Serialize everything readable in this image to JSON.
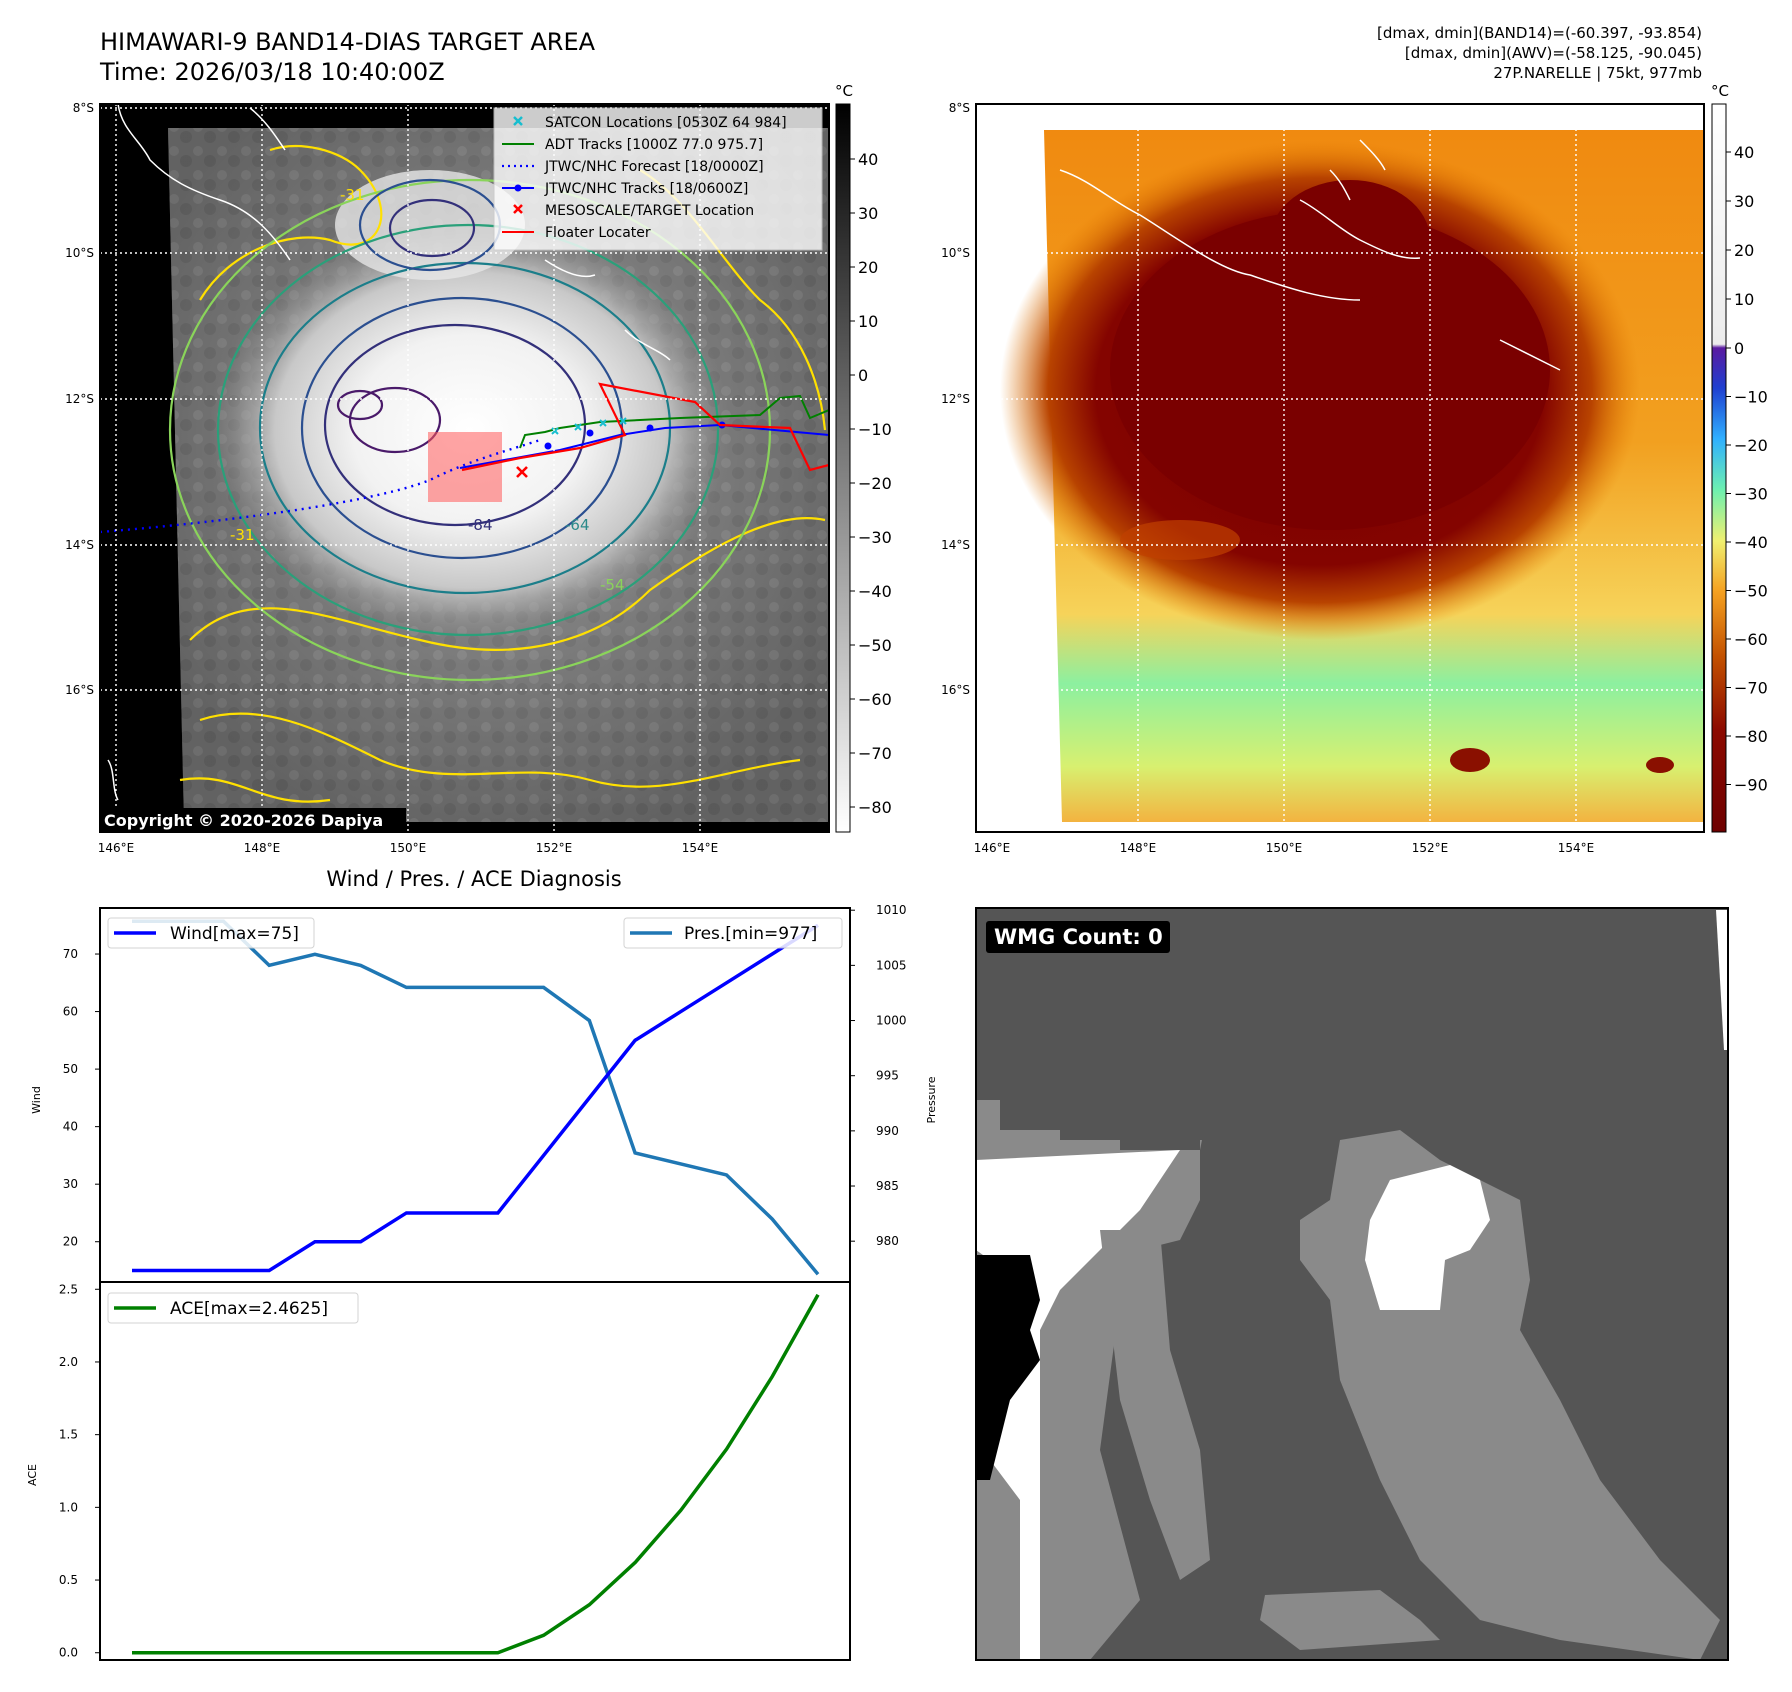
{
  "header": {
    "title_line1": "HIMAWARI-9 BAND14-DIAS TARGET AREA",
    "title_line2": "Time: 2026/03/18 10:40:00Z",
    "info_line1": "[dmax, dmin](BAND14)=(-60.397, -93.854)",
    "info_line2": "[dmax, dmin](AWV)=(-58.125, -90.045)",
    "info_line3": "27P.NARELLE | 75kt, 977mb"
  },
  "maps": {
    "lat_labels": [
      "8°S",
      "10°S",
      "12°S",
      "14°S",
      "16°S"
    ],
    "lon_labels": [
      "146°E",
      "148°E",
      "150°E",
      "152°E",
      "154°E"
    ],
    "copyright": "Copyright © 2020-2026 Dapiya",
    "legend": [
      {
        "label": "SATCON Locations [0530Z 64 984]",
        "color": "#17becf",
        "marker": "x"
      },
      {
        "label": "ADT Tracks [1000Z 77.0 975.7]",
        "color": "#008000",
        "marker": "line"
      },
      {
        "label": "JTWC/NHC Forecast [18/0000Z]",
        "color": "#0000ff",
        "marker": "dotted"
      },
      {
        "label": "JTWC/NHC Tracks [18/0600Z]",
        "color": "#0000ff",
        "marker": "line-dot"
      },
      {
        "label": "MESOSCALE/TARGET Location",
        "color": "#ff0000",
        "marker": "x"
      },
      {
        "label": "Floater Locater",
        "color": "#ff0000",
        "marker": "line"
      }
    ],
    "contour_labels": [
      "-31",
      "-54",
      "-64",
      "-84"
    ],
    "colorbar1": {
      "unit": "°C",
      "ticks": [
        "40",
        "30",
        "20",
        "10",
        "0",
        "−10",
        "−20",
        "−30",
        "−40",
        "−50",
        "−60",
        "−70",
        "−80"
      ]
    },
    "colorbar2": {
      "unit": "°C",
      "ticks": [
        "40",
        "30",
        "20",
        "10",
        "0",
        "−10",
        "−20",
        "−30",
        "−40",
        "−50",
        "−60",
        "−70",
        "−80",
        "−90"
      ]
    }
  },
  "diagnosis": {
    "title": "Wind / Pres. / ACE Diagnosis",
    "wind_ylabel": "Wind",
    "pressure_ylabel": "Pressure",
    "ace_ylabel": "ACE",
    "legend_wind": "Wind[max=75]",
    "legend_pres": "Pres.[min=977]",
    "legend_ace": "ACE[max=2.4625]"
  },
  "wmg": {
    "label": "WMG Count: 0"
  },
  "colors": {
    "wind": "#0000ff",
    "pressure": "#1f77b4",
    "ace": "#008000",
    "tracks_red": "#ff0000",
    "contour_yellow": "#ffe000"
  },
  "chart_data": [
    {
      "type": "line",
      "title": "Wind / Pres. / ACE Diagnosis",
      "x": [
        0,
        1,
        2,
        3,
        4,
        5,
        6,
        7,
        8,
        9,
        10,
        11,
        12,
        13,
        14,
        15
      ],
      "series": [
        {
          "name": "Wind[max=75]",
          "axis": "left",
          "values": [
            15,
            15,
            15,
            15,
            20,
            20,
            25,
            25,
            25,
            35,
            45,
            55,
            60,
            65,
            70,
            75
          ]
        },
        {
          "name": "Pres.[min=977]",
          "axis": "right",
          "values": [
            1009,
            1009,
            1009,
            1005,
            1006,
            1005,
            1003,
            1003,
            1003,
            1003,
            1000,
            988,
            987,
            986,
            982,
            977
          ]
        }
      ],
      "ylabel": "Wind",
      "ylim": [
        13,
        78
      ],
      "yticks": [
        20,
        30,
        40,
        50,
        60,
        70
      ],
      "y2label": "Pressure",
      "y2lim": [
        976.3,
        1010.2
      ],
      "y2ticks": [
        980,
        985,
        990,
        995,
        1000,
        1005,
        1010
      ]
    },
    {
      "type": "line",
      "x": [
        0,
        1,
        2,
        3,
        4,
        5,
        6,
        7,
        8,
        9,
        10,
        11,
        12,
        13,
        14,
        15
      ],
      "series": [
        {
          "name": "ACE[max=2.4625]",
          "values": [
            0,
            0,
            0,
            0,
            0,
            0,
            0,
            0,
            0,
            0.12,
            0.33,
            0.62,
            0.98,
            1.4,
            1.9,
            2.4625
          ]
        }
      ],
      "ylabel": "ACE",
      "ylim": [
        -0.05,
        2.55
      ],
      "yticks": [
        0.0,
        0.5,
        1.0,
        1.5,
        2.0,
        2.5
      ],
      "ytick_labels": [
        "0.0",
        "0.5",
        "1.0",
        "1.5",
        "2.0",
        "2.5"
      ]
    }
  ]
}
